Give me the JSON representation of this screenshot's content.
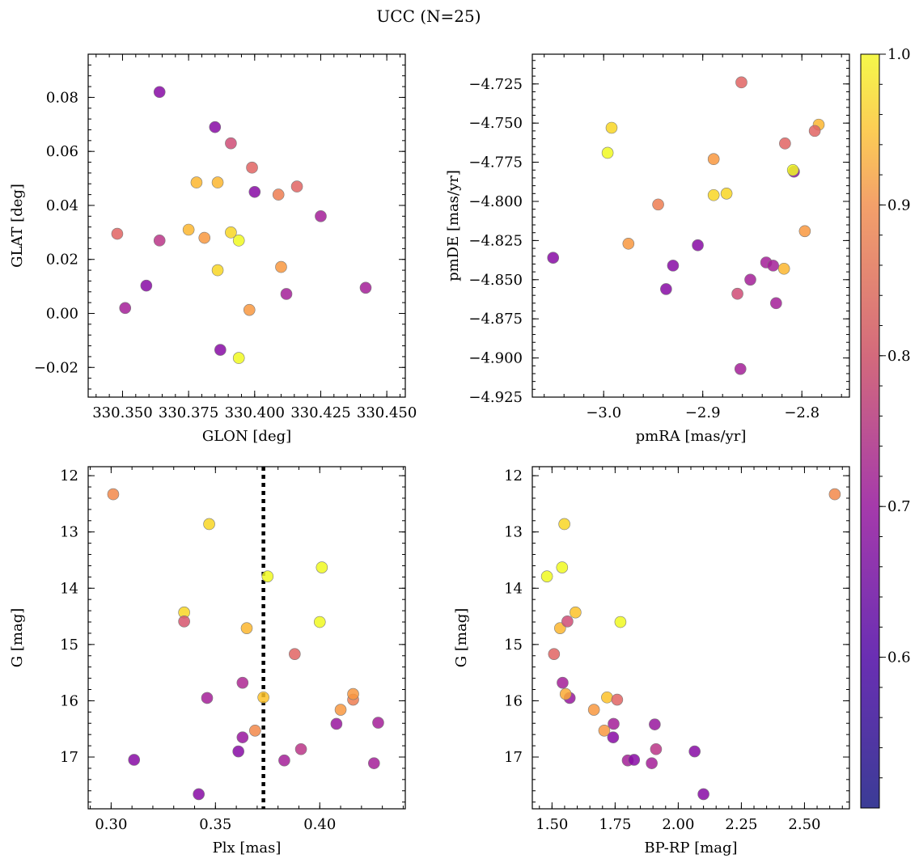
{
  "figure": {
    "title": "UCC (N=25)"
  },
  "colorbar": {
    "cmap": "plasma",
    "vmin": 0.5,
    "vmax": 1.0,
    "ticks": [
      0.6,
      0.7,
      0.8,
      0.9,
      1.0
    ],
    "tick_labels": [
      "0.6",
      "0.7",
      "0.8",
      "0.9",
      "1.0"
    ]
  },
  "chart_data": [
    {
      "type": "scatter",
      "xlabel": "GLON [deg]",
      "ylabel": "GLAT [deg]",
      "xlim": [
        330.337,
        330.457
      ],
      "ylim": [
        -0.031,
        0.096
      ],
      "xticks": [
        330.35,
        330.375,
        330.4,
        330.425,
        330.45
      ],
      "xtick_labels": [
        "330.350",
        "330.375",
        "330.400",
        "330.425",
        "330.450"
      ],
      "yticks": [
        -0.02,
        0.0,
        0.02,
        0.04,
        0.06,
        0.08
      ],
      "ytick_labels": [
        "−0.02",
        "0.00",
        "0.02",
        "0.04",
        "0.06",
        "0.08"
      ],
      "x": [
        330.364,
        330.385,
        330.391,
        330.386,
        330.378,
        330.399,
        330.409,
        330.4,
        330.416,
        330.425,
        330.348,
        330.364,
        330.375,
        330.381,
        330.391,
        330.386,
        330.359,
        330.41,
        330.412,
        330.442,
        330.351,
        330.398,
        330.394,
        330.387,
        330.394
      ],
      "y": [
        0.082,
        0.069,
        0.063,
        0.0485,
        0.0485,
        0.054,
        0.044,
        0.045,
        0.047,
        0.036,
        0.0295,
        0.027,
        0.031,
        0.028,
        0.03,
        0.016,
        0.0103,
        0.0172,
        0.0072,
        0.0095,
        0.002,
        0.0013,
        -0.0165,
        -0.0135,
        0.027
      ],
      "c": [
        0.55,
        0.55,
        0.7,
        0.9,
        0.9,
        0.75,
        0.8,
        0.55,
        0.75,
        0.6,
        0.75,
        0.65,
        0.9,
        0.85,
        0.95,
        0.95,
        0.55,
        0.85,
        0.6,
        0.6,
        0.6,
        0.85,
        1.0,
        0.55,
        1.0
      ]
    },
    {
      "type": "scatter",
      "xlabel": "pmRA [mas/yr]",
      "ylabel": "pmDE [mas/yr]",
      "xlim": [
        -3.072,
        -2.752
      ],
      "ylim": [
        -4.925,
        -4.706
      ],
      "xticks": [
        -3.0,
        -2.9,
        -2.8
      ],
      "xtick_labels": [
        "−3.0",
        "−2.9",
        "−2.8"
      ],
      "yticks": [
        -4.925,
        -4.9,
        -4.875,
        -4.85,
        -4.825,
        -4.8,
        -4.775,
        -4.75,
        -4.725
      ],
      "ytick_labels": [
        "−4.925",
        "−4.900",
        "−4.875",
        "−4.850",
        "−4.825",
        "−4.800",
        "−4.775",
        "−4.750",
        "−4.725"
      ],
      "x": [
        -2.861,
        -2.992,
        -2.996,
        -2.783,
        -2.787,
        -2.817,
        -2.889,
        -2.808,
        -2.809,
        -2.889,
        -2.876,
        -2.945,
        -2.797,
        -2.975,
        -2.905,
        -2.93,
        -3.051,
        -2.937,
        -2.818,
        -2.836,
        -2.829,
        -2.852,
        -2.865,
        -2.826,
        -2.862
      ],
      "y": [
        -4.724,
        -4.753,
        -4.769,
        -4.751,
        -4.755,
        -4.763,
        -4.773,
        -4.781,
        -4.78,
        -4.796,
        -4.795,
        -4.802,
        -4.819,
        -4.827,
        -4.828,
        -4.841,
        -4.836,
        -4.856,
        -4.843,
        -4.839,
        -4.841,
        -4.85,
        -4.859,
        -4.865,
        -4.907
      ],
      "c": [
        0.75,
        0.95,
        1.0,
        0.9,
        0.75,
        0.75,
        0.85,
        0.55,
        1.0,
        0.95,
        0.95,
        0.8,
        0.85,
        0.85,
        0.55,
        0.55,
        0.55,
        0.55,
        0.9,
        0.6,
        0.6,
        0.6,
        0.7,
        0.6,
        0.6
      ]
    },
    {
      "type": "scatter",
      "xlabel": "Plx [mas]",
      "ylabel": "G [mag]",
      "xlim": [
        0.289,
        0.441
      ],
      "ylim": [
        17.92,
        11.84
      ],
      "y_inverted": true,
      "xticks": [
        0.3,
        0.35,
        0.4
      ],
      "xtick_labels": [
        "0.30",
        "0.35",
        "0.40"
      ],
      "yticks": [
        12,
        13,
        14,
        15,
        16,
        17
      ],
      "ytick_labels": [
        "12",
        "13",
        "14",
        "15",
        "16",
        "17"
      ],
      "vline_x": 0.373,
      "vline_style": "dotted",
      "x": [
        0.301,
        0.347,
        0.401,
        0.375,
        0.335,
        0.335,
        0.365,
        0.4,
        0.388,
        0.363,
        0.346,
        0.373,
        0.416,
        0.416,
        0.41,
        0.408,
        0.428,
        0.369,
        0.363,
        0.391,
        0.361,
        0.311,
        0.383,
        0.426,
        0.342
      ],
      "y": [
        12.33,
        12.86,
        13.63,
        13.79,
        14.43,
        14.59,
        14.71,
        14.6,
        15.17,
        15.68,
        15.95,
        15.94,
        15.98,
        15.88,
        16.16,
        16.41,
        16.39,
        16.53,
        16.65,
        16.86,
        16.9,
        17.05,
        17.06,
        17.11,
        17.66
      ],
      "c": [
        0.82,
        0.95,
        1.0,
        1.0,
        0.95,
        0.72,
        0.9,
        1.0,
        0.75,
        0.62,
        0.6,
        0.92,
        0.8,
        0.85,
        0.85,
        0.58,
        0.6,
        0.82,
        0.58,
        0.65,
        0.55,
        0.55,
        0.6,
        0.6,
        0.55
      ]
    },
    {
      "type": "scatter",
      "xlabel": "BP-RP [mag]",
      "ylabel": "G [mag]",
      "xlim": [
        1.422,
        2.678
      ],
      "ylim": [
        17.92,
        11.84
      ],
      "y_inverted": true,
      "xticks": [
        1.5,
        1.75,
        2.0,
        2.25,
        2.5
      ],
      "xtick_labels": [
        "1.50",
        "1.75",
        "2.00",
        "2.25",
        "2.50"
      ],
      "yticks": [
        12,
        13,
        14,
        15,
        16,
        17
      ],
      "ytick_labels": [
        "12",
        "13",
        "14",
        "15",
        "16",
        "17"
      ],
      "x": [
        2.62,
        1.549,
        1.48,
        1.54,
        1.593,
        1.532,
        1.561,
        1.771,
        1.508,
        1.542,
        1.57,
        1.554,
        1.718,
        1.758,
        1.666,
        1.744,
        1.907,
        1.707,
        1.742,
        1.912,
        2.065,
        1.8,
        1.825,
        1.895,
        2.1
      ],
      "y": [
        12.33,
        12.86,
        13.79,
        13.63,
        14.43,
        14.71,
        14.59,
        14.6,
        15.17,
        15.68,
        15.95,
        15.88,
        15.94,
        15.98,
        16.16,
        16.41,
        16.42,
        16.53,
        16.65,
        16.86,
        16.9,
        17.06,
        17.05,
        17.11,
        17.66
      ],
      "c": [
        0.82,
        0.95,
        1.0,
        1.0,
        0.92,
        0.9,
        0.7,
        1.0,
        0.75,
        0.6,
        0.58,
        0.88,
        0.92,
        0.75,
        0.85,
        0.6,
        0.58,
        0.85,
        0.55,
        0.65,
        0.55,
        0.6,
        0.55,
        0.6,
        0.55
      ]
    }
  ]
}
